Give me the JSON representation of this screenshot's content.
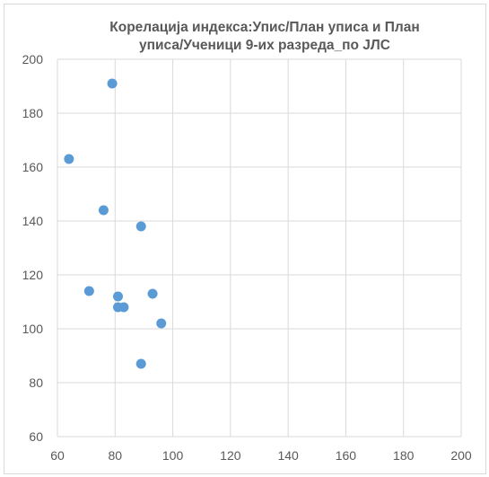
{
  "chart_data": {
    "type": "scatter",
    "title_lines": [
      "Корелација индекса:Упис/План уписа и План",
      "уписа/Ученици 9-их разреда_по ЈЛС"
    ],
    "xlabel": "",
    "ylabel": "",
    "xlim": [
      60,
      200
    ],
    "ylim": [
      60,
      200
    ],
    "x_ticks": [
      60,
      80,
      100,
      120,
      140,
      160,
      180,
      200
    ],
    "y_ticks": [
      60,
      80,
      100,
      120,
      140,
      160,
      180,
      200
    ],
    "grid": true,
    "legend": "none",
    "marker_color": "#5b9bd5",
    "points": [
      {
        "x": 79,
        "y": 191
      },
      {
        "x": 64,
        "y": 163
      },
      {
        "x": 76,
        "y": 144
      },
      {
        "x": 89,
        "y": 138
      },
      {
        "x": 71,
        "y": 114
      },
      {
        "x": 81,
        "y": 112
      },
      {
        "x": 93,
        "y": 113
      },
      {
        "x": 81,
        "y": 108
      },
      {
        "x": 83,
        "y": 108
      },
      {
        "x": 96,
        "y": 102
      },
      {
        "x": 89,
        "y": 87
      }
    ]
  }
}
